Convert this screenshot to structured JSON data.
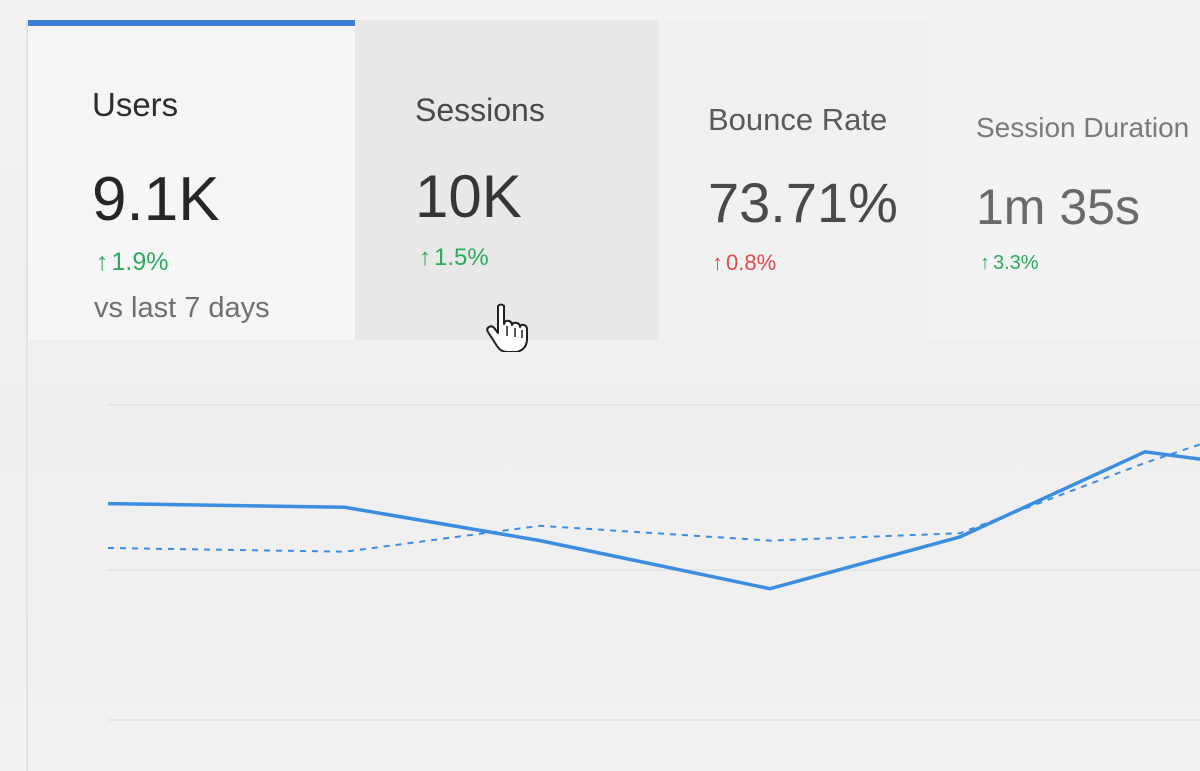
{
  "metrics": {
    "users": {
      "label": "Users",
      "value": "9.1K",
      "change": "1.9%",
      "compare": "vs last 7 days"
    },
    "sessions": {
      "label": "Sessions",
      "value": "10K",
      "change": "1.5%"
    },
    "bounce": {
      "label": "Bounce Rate",
      "value": "73.71%",
      "change": "0.8%"
    },
    "duration": {
      "label": "Session Duration",
      "value": "1m 35s",
      "change": "3.3%"
    }
  },
  "icons": {
    "arrow_up": "↑",
    "cursor": "hand-pointer-icon"
  },
  "colors": {
    "accent": "#3d7fd8",
    "positive": "#2daa5b",
    "negative": "#e0484f",
    "line": "#3a8de0"
  },
  "chart_data": {
    "type": "line",
    "series": [
      {
        "values": [
          72,
          71,
          62,
          49,
          63,
          86,
          84
        ],
        "style": "solid"
      },
      {
        "values": [
          60,
          59,
          66,
          62,
          64,
          83,
          88
        ],
        "style": "dashed"
      }
    ],
    "ylim": [
      0,
      100
    ],
    "grid": true
  }
}
